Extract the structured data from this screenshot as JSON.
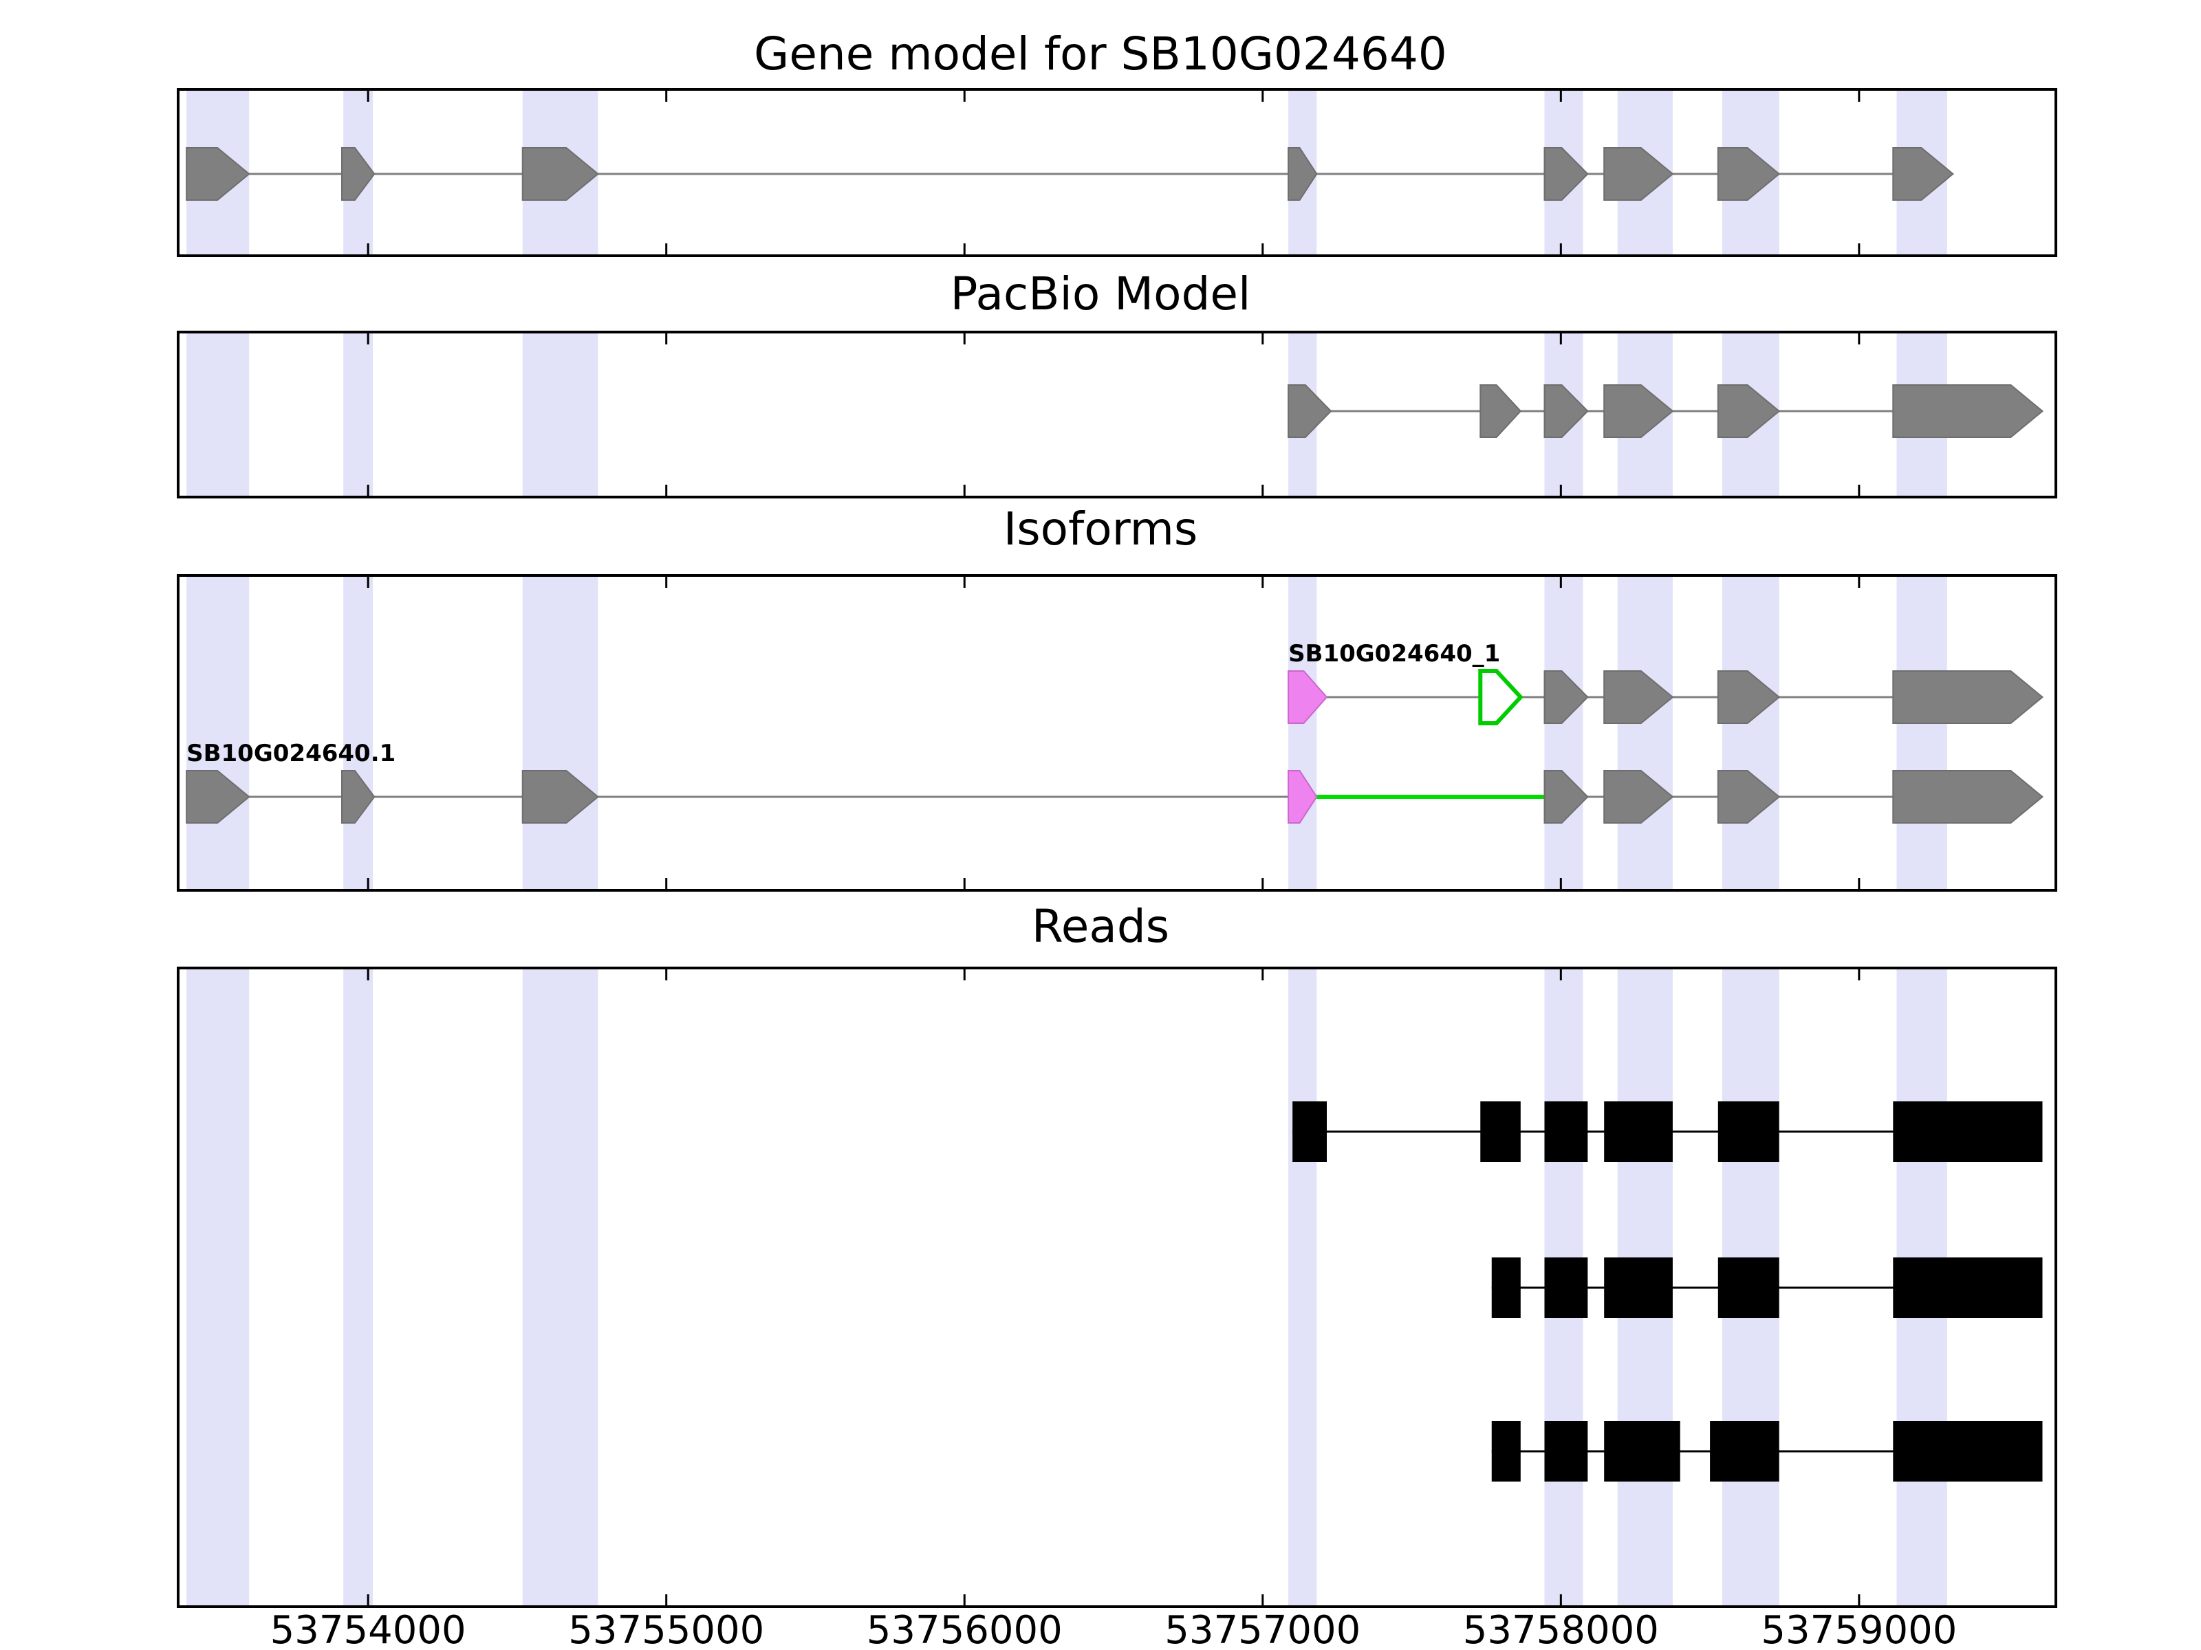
{
  "chart_data": {
    "type": "genomic-track-plot",
    "title": "Gene model for SB10G024640",
    "axis": {
      "xlim": [
        53753363,
        53759660
      ],
      "ticks": [
        53754000,
        53755000,
        53756000,
        53757000,
        53758000,
        53759000
      ],
      "tick_labels": [
        "53754000",
        "53755000",
        "53756000",
        "53757000",
        "53758000",
        "53759000"
      ]
    },
    "colors": {
      "exon": "#808080",
      "exon_edge": "#6e6e6e",
      "intron_line": "#808080",
      "novel_exon": "#EE82EE",
      "novel_exon_edge": "#cc66cc",
      "retained_intron_line": "#00DD00",
      "novel_exon_outline": "#00CC00",
      "highlight_band": "#E2E2F8",
      "read": "#000000",
      "panel_border": "#000000"
    },
    "highlights": [
      [
        53753391,
        53753601
      ],
      [
        53753917,
        53754016
      ],
      [
        53754518,
        53754771
      ],
      [
        53757086,
        53757181
      ],
      [
        53757945,
        53758074
      ],
      [
        53758190,
        53758375
      ],
      [
        53758541,
        53758732
      ],
      [
        53759126,
        53759295
      ]
    ],
    "panels": [
      {
        "id": "gene_model",
        "title": "Gene model for SB10G024640",
        "rows": [
          {
            "row": 0,
            "line": [
              53753391,
              53759315
            ],
            "features": [
              {
                "start": 53753391,
                "end": 53753601,
                "color": "exon",
                "arrow": true
              },
              {
                "start": 53753912,
                "end": 53754021,
                "color": "exon",
                "arrow": true
              },
              {
                "start": 53754518,
                "end": 53754771,
                "color": "exon",
                "arrow": true
              },
              {
                "start": 53757086,
                "end": 53757181,
                "color": "exon",
                "arrow": true
              },
              {
                "start": 53757945,
                "end": 53758090,
                "color": "exon",
                "arrow": true
              },
              {
                "start": 53758145,
                "end": 53758375,
                "color": "exon",
                "arrow": true
              },
              {
                "start": 53758527,
                "end": 53758732,
                "color": "exon",
                "arrow": true
              },
              {
                "start": 53759114,
                "end": 53759315,
                "color": "exon",
                "arrow": true
              }
            ]
          }
        ]
      },
      {
        "id": "pacbio",
        "title": "PacBio Model",
        "rows": [
          {
            "row": 0,
            "line": [
              53757086,
              53759615
            ],
            "features": [
              {
                "start": 53757086,
                "end": 53757229,
                "color": "exon",
                "arrow": true
              },
              {
                "start": 53757730,
                "end": 53757865,
                "color": "exon",
                "arrow": true
              },
              {
                "start": 53757945,
                "end": 53758090,
                "color": "exon",
                "arrow": true
              },
              {
                "start": 53758145,
                "end": 53758375,
                "color": "exon",
                "arrow": true
              },
              {
                "start": 53758527,
                "end": 53758732,
                "color": "exon",
                "arrow": true
              },
              {
                "start": 53759114,
                "end": 53759615,
                "color": "exon",
                "arrow": true
              }
            ]
          }
        ]
      },
      {
        "id": "isoforms",
        "title": "Isoforms",
        "rows": [
          {
            "row": 0,
            "label": "SB10G024640_1",
            "label_x": 53757086,
            "line": [
              53757086,
              53759615
            ],
            "features": [
              {
                "start": 53757086,
                "end": 53757215,
                "color": "novel_exon",
                "arrow": true
              },
              {
                "start": 53757730,
                "end": 53757865,
                "color": "#ffffff",
                "outline": "novel_exon_outline",
                "arrow": true
              },
              {
                "start": 53757945,
                "end": 53758090,
                "color": "exon",
                "arrow": true
              },
              {
                "start": 53758145,
                "end": 53758375,
                "color": "exon",
                "arrow": true
              },
              {
                "start": 53758527,
                "end": 53758732,
                "color": "exon",
                "arrow": true
              },
              {
                "start": 53759114,
                "end": 53759615,
                "color": "exon",
                "arrow": true
              }
            ]
          },
          {
            "row": 1,
            "label": "SB10G024640.1",
            "label_x": 53753391,
            "line": [
              53753391,
              53759615
            ],
            "green_line": [
              53757181,
              53757955
            ],
            "features": [
              {
                "start": 53753391,
                "end": 53753601,
                "color": "exon",
                "arrow": true
              },
              {
                "start": 53753912,
                "end": 53754021,
                "color": "exon",
                "arrow": true
              },
              {
                "start": 53754518,
                "end": 53754771,
                "color": "exon",
                "arrow": true
              },
              {
                "start": 53757086,
                "end": 53757181,
                "color": "novel_exon",
                "arrow": true
              },
              {
                "start": 53757945,
                "end": 53758090,
                "color": "exon",
                "arrow": true
              },
              {
                "start": 53758145,
                "end": 53758375,
                "color": "exon",
                "arrow": true
              },
              {
                "start": 53758527,
                "end": 53758732,
                "color": "exon",
                "arrow": true
              },
              {
                "start": 53759114,
                "end": 53759615,
                "color": "exon",
                "arrow": true
              }
            ]
          }
        ]
      },
      {
        "id": "reads",
        "title": "Reads",
        "rows": [
          {
            "row": 0,
            "line": [
              53757100,
              53759615
            ],
            "features": [
              {
                "start": 53757100,
                "end": 53757215,
                "color": "read",
                "arrow": false
              },
              {
                "start": 53757730,
                "end": 53757865,
                "color": "read",
                "arrow": false
              },
              {
                "start": 53757945,
                "end": 53758090,
                "color": "read",
                "arrow": false
              },
              {
                "start": 53758145,
                "end": 53758375,
                "color": "read",
                "arrow": false
              },
              {
                "start": 53758527,
                "end": 53758732,
                "color": "read",
                "arrow": false
              },
              {
                "start": 53759114,
                "end": 53759615,
                "color": "read",
                "arrow": false
              }
            ]
          },
          {
            "row": 1,
            "line": [
              53757768,
              53759615
            ],
            "features": [
              {
                "start": 53757768,
                "end": 53757865,
                "color": "read",
                "arrow": false
              },
              {
                "start": 53757945,
                "end": 53758090,
                "color": "read",
                "arrow": false
              },
              {
                "start": 53758145,
                "end": 53758375,
                "color": "read",
                "arrow": false
              },
              {
                "start": 53758527,
                "end": 53758732,
                "color": "read",
                "arrow": false
              },
              {
                "start": 53759114,
                "end": 53759615,
                "color": "read",
                "arrow": false
              }
            ]
          },
          {
            "row": 2,
            "line": [
              53757768,
              53759615
            ],
            "features": [
              {
                "start": 53757768,
                "end": 53757865,
                "color": "read",
                "arrow": false
              },
              {
                "start": 53757945,
                "end": 53758090,
                "color": "read",
                "arrow": false
              },
              {
                "start": 53758145,
                "end": 53758400,
                "color": "read",
                "arrow": false
              },
              {
                "start": 53758500,
                "end": 53758732,
                "color": "read",
                "arrow": false
              },
              {
                "start": 53759114,
                "end": 53759615,
                "color": "read",
                "arrow": false
              }
            ]
          }
        ]
      }
    ]
  }
}
